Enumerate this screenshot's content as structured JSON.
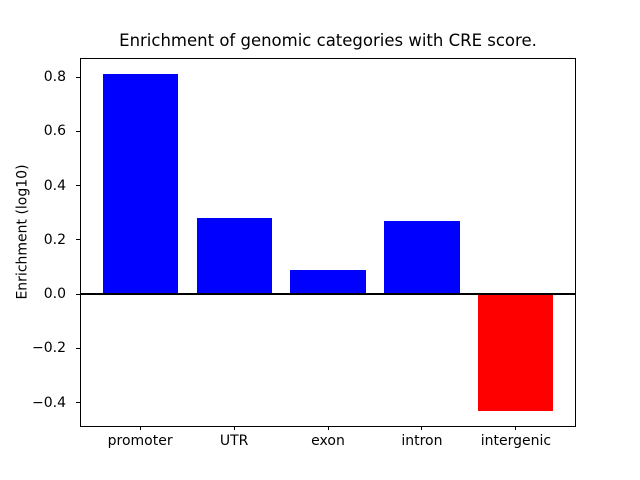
{
  "figure": {
    "background_color": "#ffffff",
    "text_color": "#000000"
  },
  "chart_data": {
    "type": "bar",
    "title": "Enrichment of genomic categories with CRE score.",
    "xlabel": "",
    "ylabel": "Enrichment (log10)",
    "categories": [
      "promoter",
      "UTR",
      "exon",
      "intron",
      "intergenic"
    ],
    "values": [
      0.81,
      0.28,
      0.09,
      0.27,
      -0.43
    ],
    "bar_colors": [
      "#0000ff",
      "#0000ff",
      "#0000ff",
      "#0000ff",
      "#ff0000"
    ],
    "positive_color": "#0000ff",
    "negative_color": "#ff0000",
    "ylim": [
      -0.49,
      0.87
    ],
    "yticks": [
      0.8,
      0.6,
      0.4,
      0.2,
      0.0,
      -0.2,
      -0.4
    ],
    "ytick_labels": [
      "0.8",
      "0.6",
      "0.4",
      "0.2",
      "0.0",
      "−0.2",
      "−0.4"
    ],
    "bar_width_fraction": 0.8,
    "x_edge_margin_units": 0.64,
    "grid": false,
    "legend": false,
    "zero_line": true,
    "zero_line_color": "#000000",
    "axis_color": "#000000"
  }
}
